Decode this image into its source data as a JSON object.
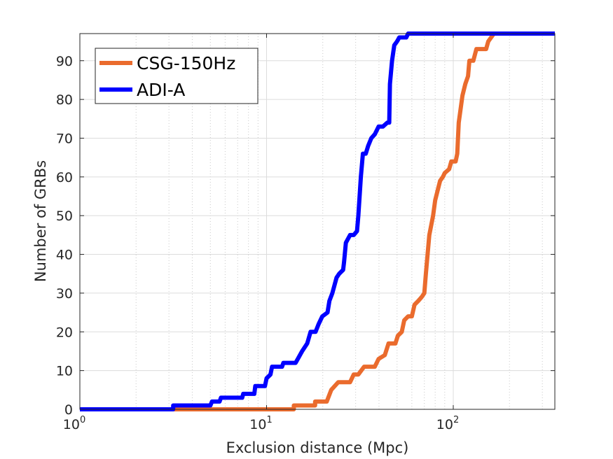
{
  "chart_data": {
    "type": "line",
    "title": "",
    "xlabel": "Exclusion distance (Mpc)",
    "ylabel": "Number of GRBs",
    "xscale": "log",
    "xlim": [
      1,
      350
    ],
    "ylim": [
      0,
      97
    ],
    "grid": true,
    "legend_position": "top-left",
    "x_ticks": [
      {
        "value": 1,
        "base": "10",
        "exp": "0"
      },
      {
        "value": 10,
        "base": "10",
        "exp": "1"
      },
      {
        "value": 100,
        "base": "10",
        "exp": "2"
      }
    ],
    "y_ticks": [
      "0",
      "10",
      "20",
      "30",
      "40",
      "50",
      "60",
      "70",
      "80",
      "90"
    ],
    "series": [
      {
        "name": "CSG-150Hz",
        "color": "#EA6B2D",
        "points": [
          [
            1,
            0
          ],
          [
            14,
            0
          ],
          [
            14,
            1
          ],
          [
            18.2,
            1
          ],
          [
            18.2,
            2
          ],
          [
            21,
            2
          ],
          [
            22.2,
            5
          ],
          [
            24.2,
            7
          ],
          [
            28,
            7
          ],
          [
            29.3,
            9
          ],
          [
            31,
            9
          ],
          [
            33.3,
            11
          ],
          [
            38,
            11
          ],
          [
            39.8,
            13
          ],
          [
            43,
            14
          ],
          [
            45,
            17
          ],
          [
            49,
            17
          ],
          [
            50.5,
            19
          ],
          [
            53,
            20
          ],
          [
            54.6,
            23
          ],
          [
            57.3,
            24
          ],
          [
            60,
            24
          ],
          [
            62,
            27
          ],
          [
            65,
            28
          ],
          [
            67.7,
            29
          ],
          [
            70,
            30
          ],
          [
            71.3,
            35
          ],
          [
            74.4,
            45
          ],
          [
            78,
            50
          ],
          [
            80,
            54
          ],
          [
            83,
            57
          ],
          [
            85,
            59
          ],
          [
            88,
            60
          ],
          [
            90,
            61
          ],
          [
            95,
            62
          ],
          [
            97.6,
            64
          ],
          [
            103,
            64
          ],
          [
            105,
            66
          ],
          [
            107,
            74
          ],
          [
            112,
            81
          ],
          [
            116,
            84
          ],
          [
            120,
            86
          ],
          [
            122,
            90
          ],
          [
            128,
            90
          ],
          [
            133,
            93
          ],
          [
            150,
            93
          ],
          [
            154,
            95
          ],
          [
            165,
            97
          ],
          [
            350,
            97
          ]
        ]
      },
      {
        "name": "ADI-A",
        "color": "#0000FF",
        "points": [
          [
            1,
            0
          ],
          [
            3.16,
            0
          ],
          [
            3.16,
            1
          ],
          [
            5,
            1
          ],
          [
            5.1,
            2
          ],
          [
            5.6,
            2
          ],
          [
            5.7,
            3
          ],
          [
            7.4,
            3
          ],
          [
            7.5,
            4
          ],
          [
            8.6,
            4
          ],
          [
            8.7,
            6
          ],
          [
            9.8,
            6
          ],
          [
            10,
            8
          ],
          [
            10.5,
            9
          ],
          [
            10.7,
            11
          ],
          [
            12.1,
            11
          ],
          [
            12.3,
            12
          ],
          [
            14.3,
            12
          ],
          [
            14.7,
            13
          ],
          [
            15.5,
            15
          ],
          [
            16.5,
            17
          ],
          [
            17.2,
            20
          ],
          [
            18.3,
            20
          ],
          [
            19,
            22
          ],
          [
            19.9,
            24
          ],
          [
            21.2,
            25
          ],
          [
            21.7,
            28
          ],
          [
            22.5,
            30
          ],
          [
            23.7,
            34
          ],
          [
            24.5,
            35
          ],
          [
            25.7,
            36
          ],
          [
            26,
            38
          ],
          [
            26.6,
            43
          ],
          [
            28,
            45
          ],
          [
            29.3,
            45
          ],
          [
            30.5,
            46
          ],
          [
            31,
            50
          ],
          [
            32,
            60
          ],
          [
            32.8,
            66
          ],
          [
            34,
            66
          ],
          [
            35,
            68
          ],
          [
            36.4,
            70
          ],
          [
            38,
            71
          ],
          [
            39.8,
            73
          ],
          [
            42,
            73
          ],
          [
            44.3,
            74
          ],
          [
            45.4,
            74
          ],
          [
            45.8,
            84
          ],
          [
            47,
            90
          ],
          [
            48.3,
            94
          ],
          [
            50,
            95
          ],
          [
            51.4,
            96
          ],
          [
            56,
            96
          ],
          [
            57.3,
            97
          ],
          [
            350,
            97
          ]
        ]
      }
    ]
  }
}
